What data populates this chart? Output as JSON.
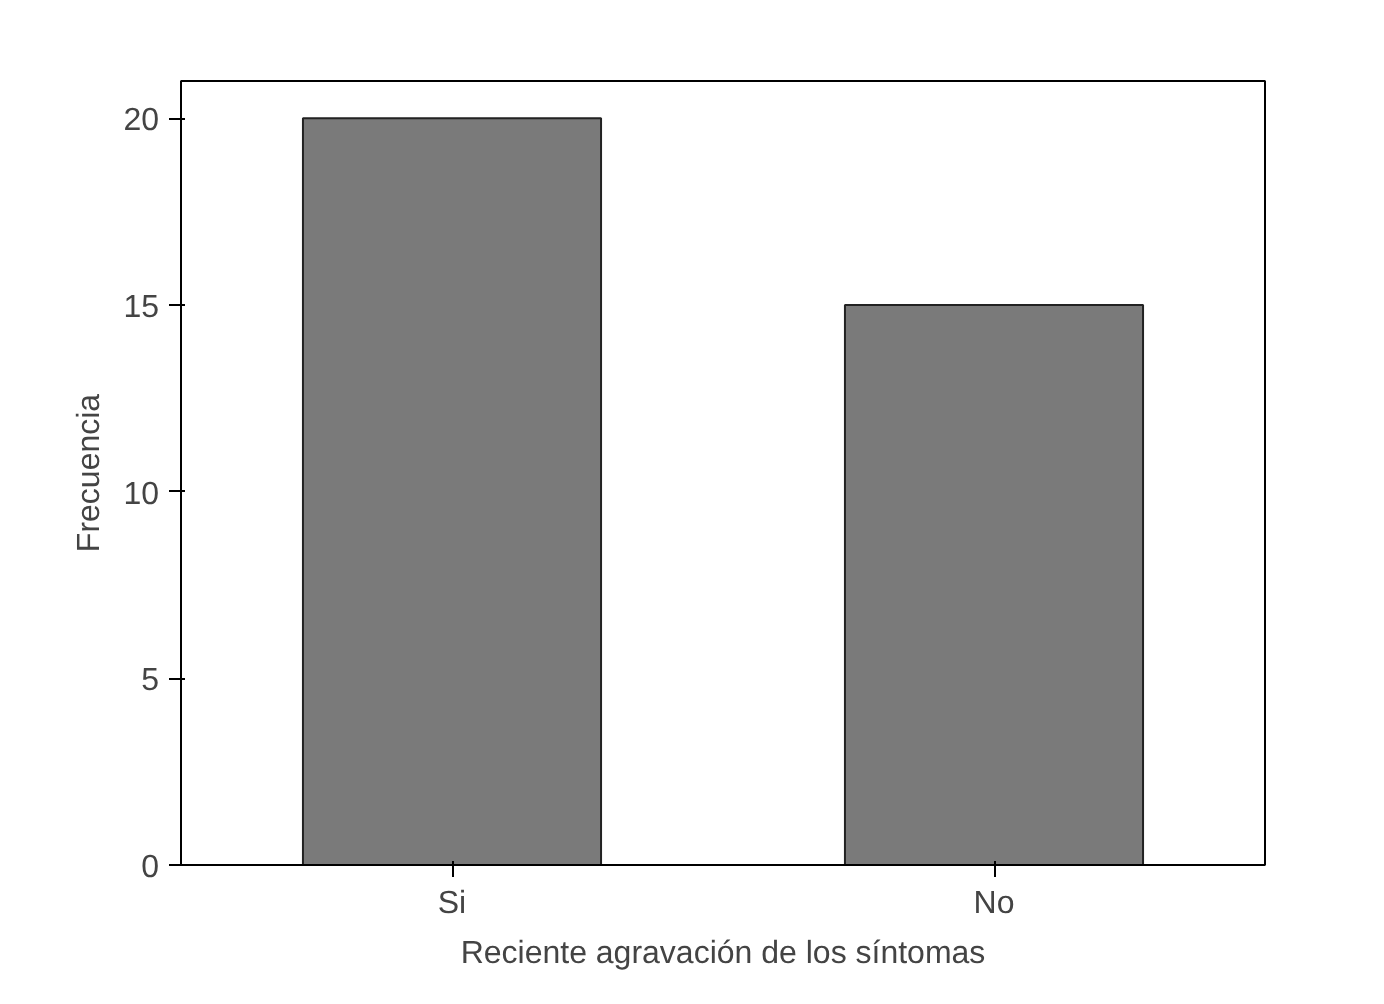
{
  "chart_data": {
    "type": "bar",
    "xlabel": "Reciente agravación de los síntomas",
    "ylabel": "Frecuencia",
    "categories": [
      "Si",
      "No"
    ],
    "values": [
      20,
      15
    ],
    "color": "#7a7a7a",
    "ylim": [
      0,
      21
    ],
    "yticks": [
      0,
      5,
      10,
      15,
      20
    ],
    "grid": false
  }
}
